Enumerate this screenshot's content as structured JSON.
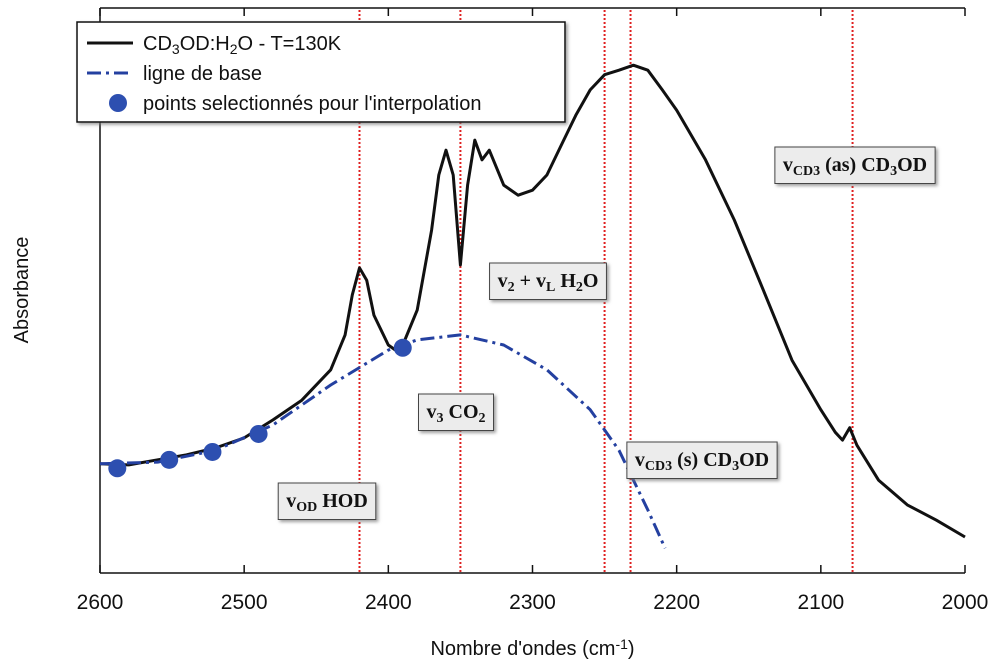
{
  "chart_data": {
    "type": "line",
    "x_label": [
      {
        "t": "Nombre d'ondes (cm"
      },
      {
        "sup": "-1"
      },
      {
        "t": ")"
      }
    ],
    "y_label": "Absorbance",
    "xlim": [
      2600,
      2000
    ],
    "ylim": [
      0,
      1
    ],
    "xticks": [
      2600,
      2500,
      2400,
      2300,
      2200,
      2100,
      2000
    ],
    "legend": "upper left",
    "series": [
      {
        "type": "line",
        "name": [
          {
            "t": "CD"
          },
          {
            "sub": "3"
          },
          {
            "t": "OD:H"
          },
          {
            "sub": "2"
          },
          {
            "t": "O - T=130K"
          }
        ],
        "color": "#111111",
        "style": "solid",
        "x": [
          2600,
          2580,
          2560,
          2540,
          2520,
          2500,
          2480,
          2460,
          2440,
          2430,
          2425,
          2420,
          2415,
          2410,
          2400,
          2395,
          2390,
          2380,
          2370,
          2365,
          2360,
          2355,
          2350,
          2345,
          2340,
          2335,
          2330,
          2320,
          2310,
          2300,
          2290,
          2280,
          2270,
          2260,
          2250,
          2240,
          2230,
          2220,
          2210,
          2200,
          2180,
          2160,
          2140,
          2120,
          2100,
          2090,
          2085,
          2080,
          2075,
          2060,
          2040,
          2020,
          2000
        ],
        "values": [
          0.194,
          0.192,
          0.201,
          0.21,
          0.222,
          0.24,
          0.272,
          0.307,
          0.361,
          0.423,
          0.494,
          0.542,
          0.52,
          0.458,
          0.405,
          0.396,
          0.405,
          0.467,
          0.609,
          0.707,
          0.751,
          0.707,
          0.547,
          0.689,
          0.769,
          0.734,
          0.751,
          0.689,
          0.671,
          0.68,
          0.707,
          0.76,
          0.813,
          0.858,
          0.885,
          0.893,
          0.902,
          0.893,
          0.858,
          0.822,
          0.734,
          0.627,
          0.503,
          0.378,
          0.29,
          0.25,
          0.236,
          0.258,
          0.227,
          0.165,
          0.121,
          0.094,
          0.064
        ]
      },
      {
        "type": "line",
        "name": [
          {
            "t": "ligne de base"
          }
        ],
        "color": "#2440a0",
        "style": "dashdot",
        "x": [
          2600,
          2560,
          2520,
          2480,
          2440,
          2400,
          2380,
          2350,
          2320,
          2290,
          2260,
          2240,
          2220,
          2208
        ],
        "values": [
          0.194,
          0.197,
          0.218,
          0.263,
          0.334,
          0.396,
          0.414,
          0.423,
          0.405,
          0.361,
          0.29,
          0.218,
          0.112,
          0.044
        ]
      },
      {
        "type": "scatter",
        "name": [
          {
            "t": "points selectionnés pour l'interpolation"
          }
        ],
        "color": "#2d4fb0",
        "x": [
          2588,
          2552,
          2522,
          2490,
          2390
        ],
        "values": [
          0.186,
          0.201,
          0.215,
          0.247,
          0.4
        ]
      }
    ],
    "vlines": {
      "color": "#e02020",
      "x": [
        2420,
        2350,
        2250,
        2232,
        2078
      ]
    },
    "annotations": [
      [
        {
          "t": "v"
        },
        {
          "sub": "OD"
        },
        {
          "t": " HOD"
        }
      ],
      [
        {
          "t": "v"
        },
        {
          "sub": "3"
        },
        {
          "t": " CO"
        },
        {
          "sub": "2"
        }
      ],
      [
        {
          "t": "v"
        },
        {
          "sub": "2"
        },
        {
          "t": " + v"
        },
        {
          "sub": "L"
        },
        {
          "t": " H"
        },
        {
          "sub": "2"
        },
        {
          "t": "O"
        }
      ],
      [
        {
          "t": "v"
        },
        {
          "sub": "CD3"
        },
        {
          "t": " (s) CD"
        },
        {
          "sub": "3"
        },
        {
          "t": "OD"
        }
      ],
      [
        {
          "t": "v"
        },
        {
          "sub": "CD3"
        },
        {
          "t": " (as) CD"
        },
        {
          "sub": "3"
        },
        {
          "t": "OD"
        }
      ]
    ]
  }
}
